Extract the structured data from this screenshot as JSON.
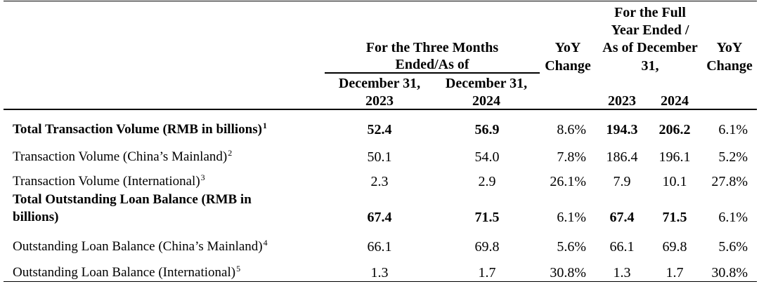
{
  "header": {
    "three_months_line1": "For the Three Months",
    "three_months_line2": "Ended/As of",
    "yoy1_line1": "YoY",
    "yoy1_line2": "Change",
    "full_year_line1": "For the Full",
    "full_year_line2": "Year Ended /",
    "full_year_line3": "As of December",
    "full_year_line4": "31,",
    "yoy2_line1": "YoY",
    "yoy2_line2": "Change",
    "col_q2023_line1": "December 31,",
    "col_q2023_line2": "2023",
    "col_q2024_line1": "December 31,",
    "col_q2024_line2": "2024",
    "col_fy2023": "2023",
    "col_fy2024": "2024"
  },
  "rows": [
    {
      "label": "Total Transaction Volume (RMB in billions)",
      "sup": "1",
      "q2023": "52.4",
      "q2024": "56.9",
      "yoy_q": "8.6%",
      "fy2023": "194.3",
      "fy2024": "206.2",
      "yoy_fy": "6.1%"
    },
    {
      "label": "Transaction Volume (China’s Mainland)",
      "sup": "2",
      "q2023": "50.1",
      "q2024": "54.0",
      "yoy_q": "7.8%",
      "fy2023": "186.4",
      "fy2024": "196.1",
      "yoy_fy": "5.2%"
    },
    {
      "label": "Transaction Volume (International)",
      "sup": "3",
      "q2023": "2.3",
      "q2024": "2.9",
      "yoy_q": "26.1%",
      "fy2023": "7.9",
      "fy2024": "10.1",
      "yoy_fy": "27.8%"
    },
    {
      "label_line1": "Total Outstanding Loan Balance (RMB in",
      "label_line2": "billions)",
      "q2023": "67.4",
      "q2024": "71.5",
      "yoy_q": "6.1%",
      "fy2023": "67.4",
      "fy2024": "71.5",
      "yoy_fy": "6.1%"
    },
    {
      "label": "Outstanding Loan Balance (China’s Mainland)",
      "sup": "4",
      "q2023": "66.1",
      "q2024": "69.8",
      "yoy_q": "5.6%",
      "fy2023": "66.1",
      "fy2024": "69.8",
      "yoy_fy": "5.6%"
    },
    {
      "label": "Outstanding Loan Balance (International)",
      "sup": "5",
      "q2023": "1.3",
      "q2024": "1.7",
      "yoy_q": "30.8%",
      "fy2023": "1.3",
      "fy2024": "1.7",
      "yoy_fy": "30.8%"
    }
  ]
}
